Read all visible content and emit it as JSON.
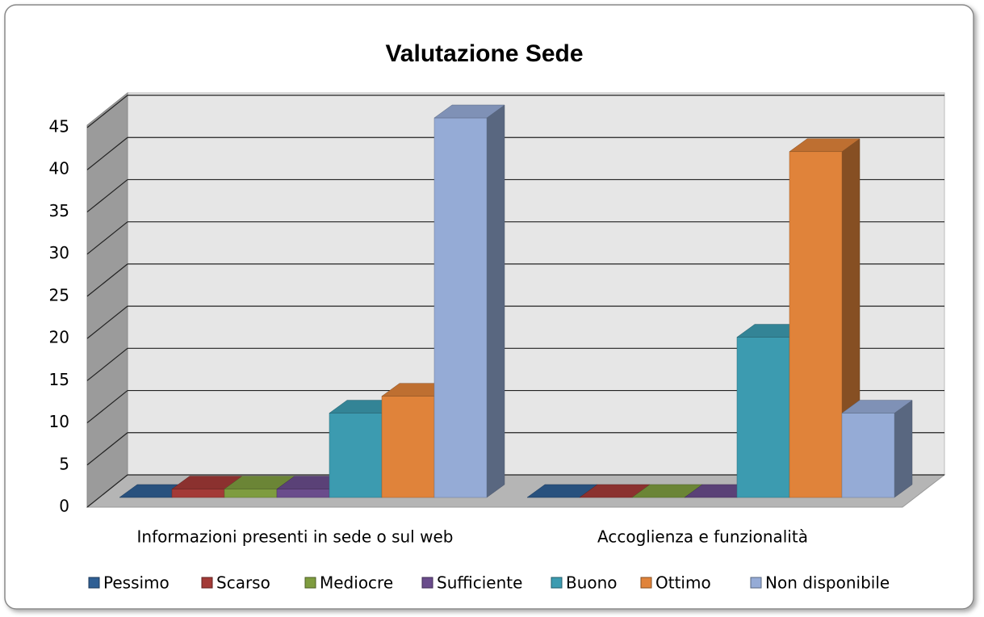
{
  "chart_data": {
    "type": "bar3d",
    "title": "Valutazione Sede",
    "categories": [
      "Informazioni presenti in sede o sul web",
      "Accoglienza e funzionalità"
    ],
    "series": [
      {
        "name": "Pessimo",
        "color": "#2f5f94",
        "values": [
          0,
          0
        ]
      },
      {
        "name": "Scarso",
        "color": "#a33a37",
        "values": [
          1,
          0
        ]
      },
      {
        "name": "Mediocre",
        "color": "#7e9c3f",
        "values": [
          1,
          0
        ]
      },
      {
        "name": "Sufficiente",
        "color": "#6a4c8c",
        "values": [
          1,
          0
        ]
      },
      {
        "name": "Buono",
        "color": "#3c9bb0",
        "values": [
          10,
          19
        ]
      },
      {
        "name": "Ottimo",
        "color": "#e0833a",
        "values": [
          12,
          41
        ]
      },
      {
        "name": "Non disponibile",
        "color": "#95abd6",
        "values": [
          45,
          10
        ]
      }
    ],
    "ylim": [
      0,
      45
    ],
    "yticks": [
      0,
      5,
      10,
      15,
      20,
      25,
      30,
      35,
      40,
      45
    ],
    "grid": true,
    "legend": "bottom"
  }
}
